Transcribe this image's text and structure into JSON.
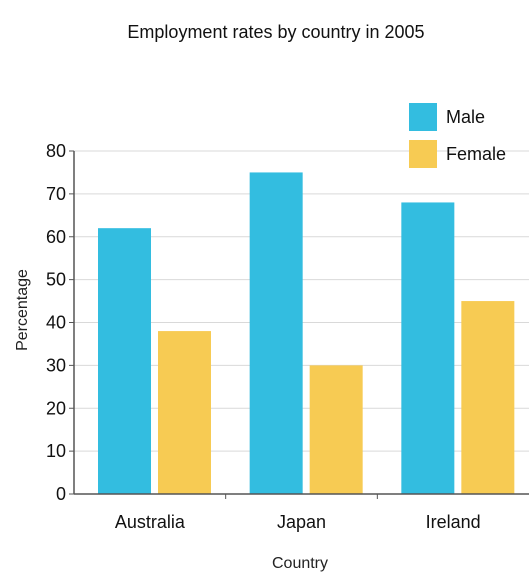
{
  "chart_data": {
    "type": "bar",
    "title": "Employment rates by country in 2005",
    "xlabel": "Country",
    "ylabel": "Percentage",
    "categories": [
      "Australia",
      "Japan",
      "Ireland"
    ],
    "series": [
      {
        "name": "Male",
        "color": "#33bde0",
        "values": [
          62,
          75,
          68
        ]
      },
      {
        "name": "Female",
        "color": "#f7cb53",
        "values": [
          38,
          30,
          45
        ]
      }
    ],
    "ylim": [
      0,
      80
    ],
    "yticks": [
      0,
      10,
      20,
      30,
      40,
      50,
      60,
      70,
      80
    ],
    "grid": true,
    "legend_position": "top-right"
  }
}
